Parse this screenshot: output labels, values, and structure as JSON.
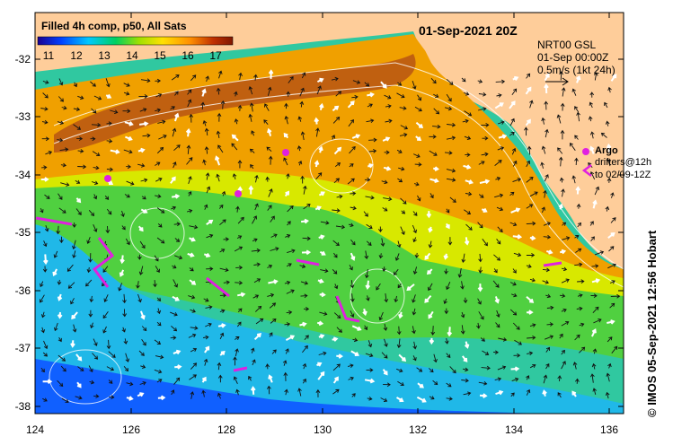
{
  "header": {
    "product": "Filled 4h comp, p50, All Sats",
    "date": "01-Sep-2021 20Z"
  },
  "colorbar": {
    "ticks": [
      "11",
      "12",
      "13",
      "14",
      "15",
      "16",
      "17"
    ],
    "min": 10.5,
    "max": 17.5,
    "unit_hint": "SST"
  },
  "current_info": {
    "line1": "NRT00 GSL",
    "line2": "01-Sep 00:00Z",
    "line3": "0.5m/s (1kt 24h)"
  },
  "legend": {
    "argo_label": "Argo",
    "drifters_line1": "drifters@12h",
    "drifters_line2": "to 02/09-12Z"
  },
  "axes": {
    "lat_labels": [
      "-32",
      "-33",
      "-34",
      "-35",
      "-36",
      "-37",
      "-38"
    ],
    "lon_labels": [
      "124",
      "126",
      "128",
      "130",
      "132",
      "134",
      "136"
    ],
    "lon_range": [
      124,
      136.3
    ],
    "lat_range": [
      -38.1,
      -31.3
    ]
  },
  "credit": "© IMOS 05-Sep-2021 12:56 Hobart",
  "colors": {
    "land": "#fecd9a",
    "argo": "#e020e0",
    "cb_stops": [
      "#1a0090",
      "#0040ff",
      "#00c8ff",
      "#00d060",
      "#a0e000",
      "#ffe000",
      "#ff9000",
      "#c03000",
      "#801800"
    ]
  }
}
